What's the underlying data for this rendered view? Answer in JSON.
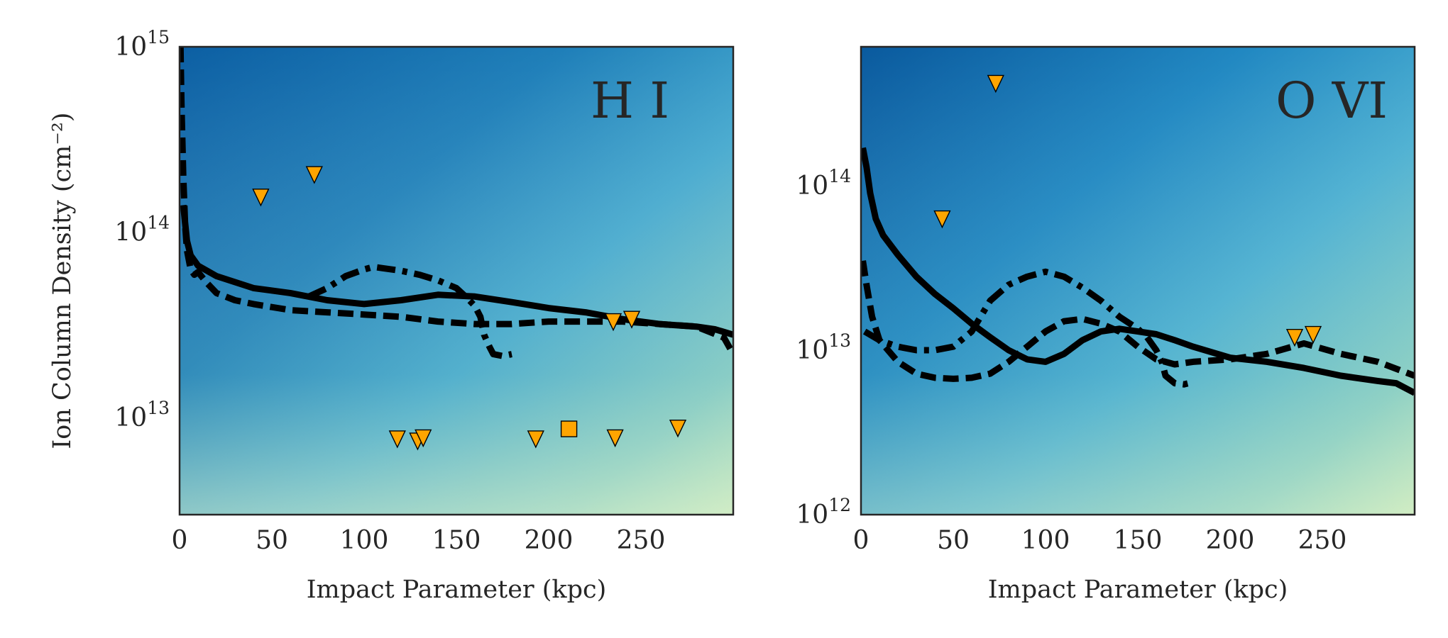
{
  "chart_data": [
    {
      "type": "line",
      "panel_label": "H I",
      "xlabel": "Impact Parameter (kpc)",
      "ylabel": "Ion Column Density (cm⁻²)",
      "xlim": [
        0,
        300
      ],
      "ylim": [
        3000000000000.0,
        1000000000000000.0
      ],
      "yscale": "log",
      "grid": false,
      "background": "2D density histogram (blue→light green colormap)",
      "x_ticks": [
        "0",
        "50",
        "100",
        "150",
        "200",
        "250"
      ],
      "y_ticks": [
        {
          "base": "10",
          "exp": "13",
          "value": 10000000000000.0
        },
        {
          "base": "10",
          "exp": "14",
          "value": 100000000000000.0
        },
        {
          "base": "10",
          "exp": "15",
          "value": 1000000000000000.0
        }
      ],
      "series": [
        {
          "style": "solid",
          "x": [
            2,
            4,
            6,
            10,
            20,
            40,
            60,
            80,
            100,
            120,
            140,
            160,
            180,
            200,
            220,
            240,
            260,
            280,
            290,
            300
          ],
          "y": [
            140000000000000.0,
            90000000000000.0,
            75000000000000.0,
            66000000000000.0,
            58000000000000.0,
            50000000000000.0,
            47000000000000.0,
            43000000000000.0,
            41000000000000.0,
            43000000000000.0,
            46000000000000.0,
            45000000000000.0,
            42000000000000.0,
            39000000000000.0,
            37000000000000.0,
            34000000000000.0,
            32000000000000.0,
            31000000000000.0,
            30000000000000.0,
            28000000000000.0
          ]
        },
        {
          "style": "dashed",
          "x": [
            0.5,
            1,
            2,
            3,
            4,
            6,
            8,
            10,
            15,
            20,
            30,
            40,
            60,
            80,
            100,
            120,
            140,
            160,
            180,
            200,
            220,
            240,
            260,
            280,
            295,
            300
          ],
          "y": [
            1000000000000000.0,
            500000000000000.0,
            200000000000000.0,
            110000000000000.0,
            80000000000000.0,
            63000000000000.0,
            59000000000000.0,
            61000000000000.0,
            53000000000000.0,
            47000000000000.0,
            43000000000000.0,
            41000000000000.0,
            38000000000000.0,
            37000000000000.0,
            36000000000000.0,
            35000000000000.0,
            33000000000000.0,
            32000000000000.0,
            32000000000000.0,
            33000000000000.0,
            33000000000000.0,
            33000000000000.0,
            32000000000000.0,
            31000000000000.0,
            27000000000000.0,
            22000000000000.0
          ]
        },
        {
          "style": "dashdot",
          "x": [
            70,
            80,
            90,
            100,
            105,
            110,
            120,
            130,
            140,
            150,
            155,
            160,
            163,
            165,
            168,
            170,
            175,
            180
          ],
          "y": [
            45000000000000.0,
            50000000000000.0,
            58000000000000.0,
            63000000000000.0,
            65000000000000.0,
            64000000000000.0,
            62000000000000.0,
            59000000000000.0,
            55000000000000.0,
            50000000000000.0,
            45000000000000.0,
            40000000000000.0,
            35000000000000.0,
            28000000000000.0,
            24000000000000.0,
            22000000000000.0,
            21500000000000.0,
            22000000000000.0
          ]
        }
      ],
      "upper_limits_x": [
        44,
        73,
        235,
        245,
        118,
        129,
        132,
        193,
        236,
        270
      ],
      "upper_limits_y": [
        155000000000000.0,
        205000000000000.0,
        33000000000000.0,
        34000000000000.0,
        7700000000000.0,
        7500000000000.0,
        7800000000000.0,
        7700000000000.0,
        7800000000000.0,
        8800000000000.0
      ],
      "detections_x": [
        211
      ],
      "detections_y": [
        8700000000000.0
      ],
      "marker_color": "#ffa500"
    },
    {
      "type": "line",
      "panel_label": "O VI",
      "xlabel": "Impact Parameter (kpc)",
      "ylabel": "",
      "xlim": [
        0,
        300
      ],
      "ylim": [
        1000000000000.0,
        700000000000000.0
      ],
      "yscale": "log",
      "grid": false,
      "background": "2D density histogram (blue→light green colormap)",
      "x_ticks": [
        "0",
        "50",
        "100",
        "150",
        "200",
        "250"
      ],
      "y_ticks": [
        {
          "base": "10",
          "exp": "12",
          "value": 1000000000000.0
        },
        {
          "base": "10",
          "exp": "13",
          "value": 10000000000000.0
        },
        {
          "base": "10",
          "exp": "14",
          "value": 100000000000000.0
        }
      ],
      "series": [
        {
          "style": "solid",
          "x": [
            1,
            3,
            5,
            8,
            12,
            20,
            30,
            40,
            50,
            60,
            70,
            80,
            90,
            100,
            110,
            120,
            130,
            140,
            150,
            160,
            170,
            180,
            200,
            220,
            240,
            260,
            280,
            290,
            300
          ],
          "y": [
            170000000000000.0,
            130000000000000.0,
            90000000000000.0,
            63000000000000.0,
            50000000000000.0,
            38000000000000.0,
            28000000000000.0,
            22000000000000.0,
            18000000000000.0,
            14500000000000.0,
            12000000000000.0,
            10000000000000.0,
            8800000000000.0,
            8500000000000.0,
            9500000000000.0,
            11500000000000.0,
            13000000000000.0,
            13500000000000.0,
            13000000000000.0,
            12500000000000.0,
            11500000000000.0,
            10500000000000.0,
            9000000000000.0,
            8500000000000.0,
            7800000000000.0,
            7000000000000.0,
            6500000000000.0,
            6300000000000.0,
            5500000000000.0
          ]
        },
        {
          "style": "dashed",
          "x": [
            1,
            3,
            6,
            10,
            20,
            30,
            40,
            50,
            60,
            70,
            80,
            90,
            100,
            110,
            120,
            130,
            140,
            150,
            160,
            170,
            180,
            200,
            220,
            240,
            260,
            280,
            300
          ],
          "y": [
            35000000000000.0,
            25000000000000.0,
            16000000000000.0,
            11500000000000.0,
            8500000000000.0,
            7200000000000.0,
            6800000000000.0,
            6700000000000.0,
            6800000000000.0,
            7200000000000.0,
            8500000000000.0,
            10500000000000.0,
            13000000000000.0,
            15000000000000.0,
            15500000000000.0,
            14500000000000.0,
            13000000000000.0,
            10500000000000.0,
            8800000000000.0,
            8200000000000.0,
            8500000000000.0,
            8800000000000.0,
            9500000000000.0,
            11000000000000.0,
            9500000000000.0,
            8500000000000.0,
            7000000000000.0
          ]
        },
        {
          "style": "dashdot",
          "x": [
            2,
            10,
            20,
            30,
            40,
            50,
            60,
            70,
            80,
            90,
            100,
            110,
            120,
            130,
            140,
            150,
            155,
            160,
            163,
            165,
            170,
            175,
            180
          ],
          "y": [
            13000000000000.0,
            11500000000000.0,
            10500000000000.0,
            10000000000000.0,
            10000000000000.0,
            10500000000000.0,
            13000000000000.0,
            20000000000000.0,
            25000000000000.0,
            28000000000000.0,
            30000000000000.0,
            28000000000000.0,
            24000000000000.0,
            20000000000000.0,
            16000000000000.0,
            13500000000000.0,
            12000000000000.0,
            10000000000000.0,
            8500000000000.0,
            7000000000000.0,
            6300000000000.0,
            6200000000000.0,
            6400000000000.0
          ]
        }
      ],
      "upper_limits_x": [
        73,
        44,
        235,
        245
      ],
      "upper_limits_y": [
        420000000000000.0,
        63000000000000.0,
        12000000000000.0,
        12500000000000.0
      ],
      "detections_x": [],
      "detections_y": [],
      "marker_color": "#ffa500"
    }
  ]
}
